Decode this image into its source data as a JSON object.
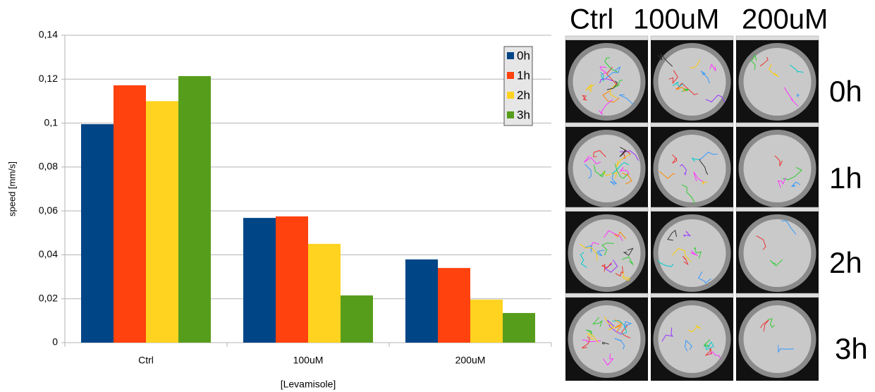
{
  "chart_data": {
    "type": "bar",
    "y_label": "speed [mm/s]",
    "x_label": "[Levamisole]",
    "categories": [
      "Ctrl",
      "100uM",
      "200uM"
    ],
    "series": [
      {
        "name": "0h",
        "color": "#004586",
        "values": [
          0.0995,
          0.0568,
          0.0379
        ]
      },
      {
        "name": "1h",
        "color": "#ff420e",
        "values": [
          0.1172,
          0.0575,
          0.034
        ]
      },
      {
        "name": "2h",
        "color": "#ffd320",
        "values": [
          0.11,
          0.045,
          0.0196
        ]
      },
      {
        "name": "3h",
        "color": "#579d1c",
        "values": [
          0.1214,
          0.0215,
          0.0135
        ]
      }
    ],
    "ylim": [
      0,
      0.14
    ],
    "yticks": [
      0,
      {
        "value": 0.02,
        "label": "0,02"
      },
      {
        "value": 0.04,
        "label": "0,04"
      },
      {
        "value": 0.06,
        "label": "0,06"
      },
      {
        "value": 0.08,
        "label": "0,08"
      },
      {
        "value": 0.1,
        "label": "0,1"
      },
      {
        "value": 0.12,
        "label": "0,12"
      },
      {
        "value": 0.14,
        "label": "0,14"
      }
    ],
    "grid": true,
    "legend": "top-right"
  },
  "image_panel": {
    "columns": [
      "Ctrl",
      "100uM",
      "200uM"
    ],
    "rows": [
      "0h",
      "1h",
      "2h",
      "3h"
    ]
  }
}
